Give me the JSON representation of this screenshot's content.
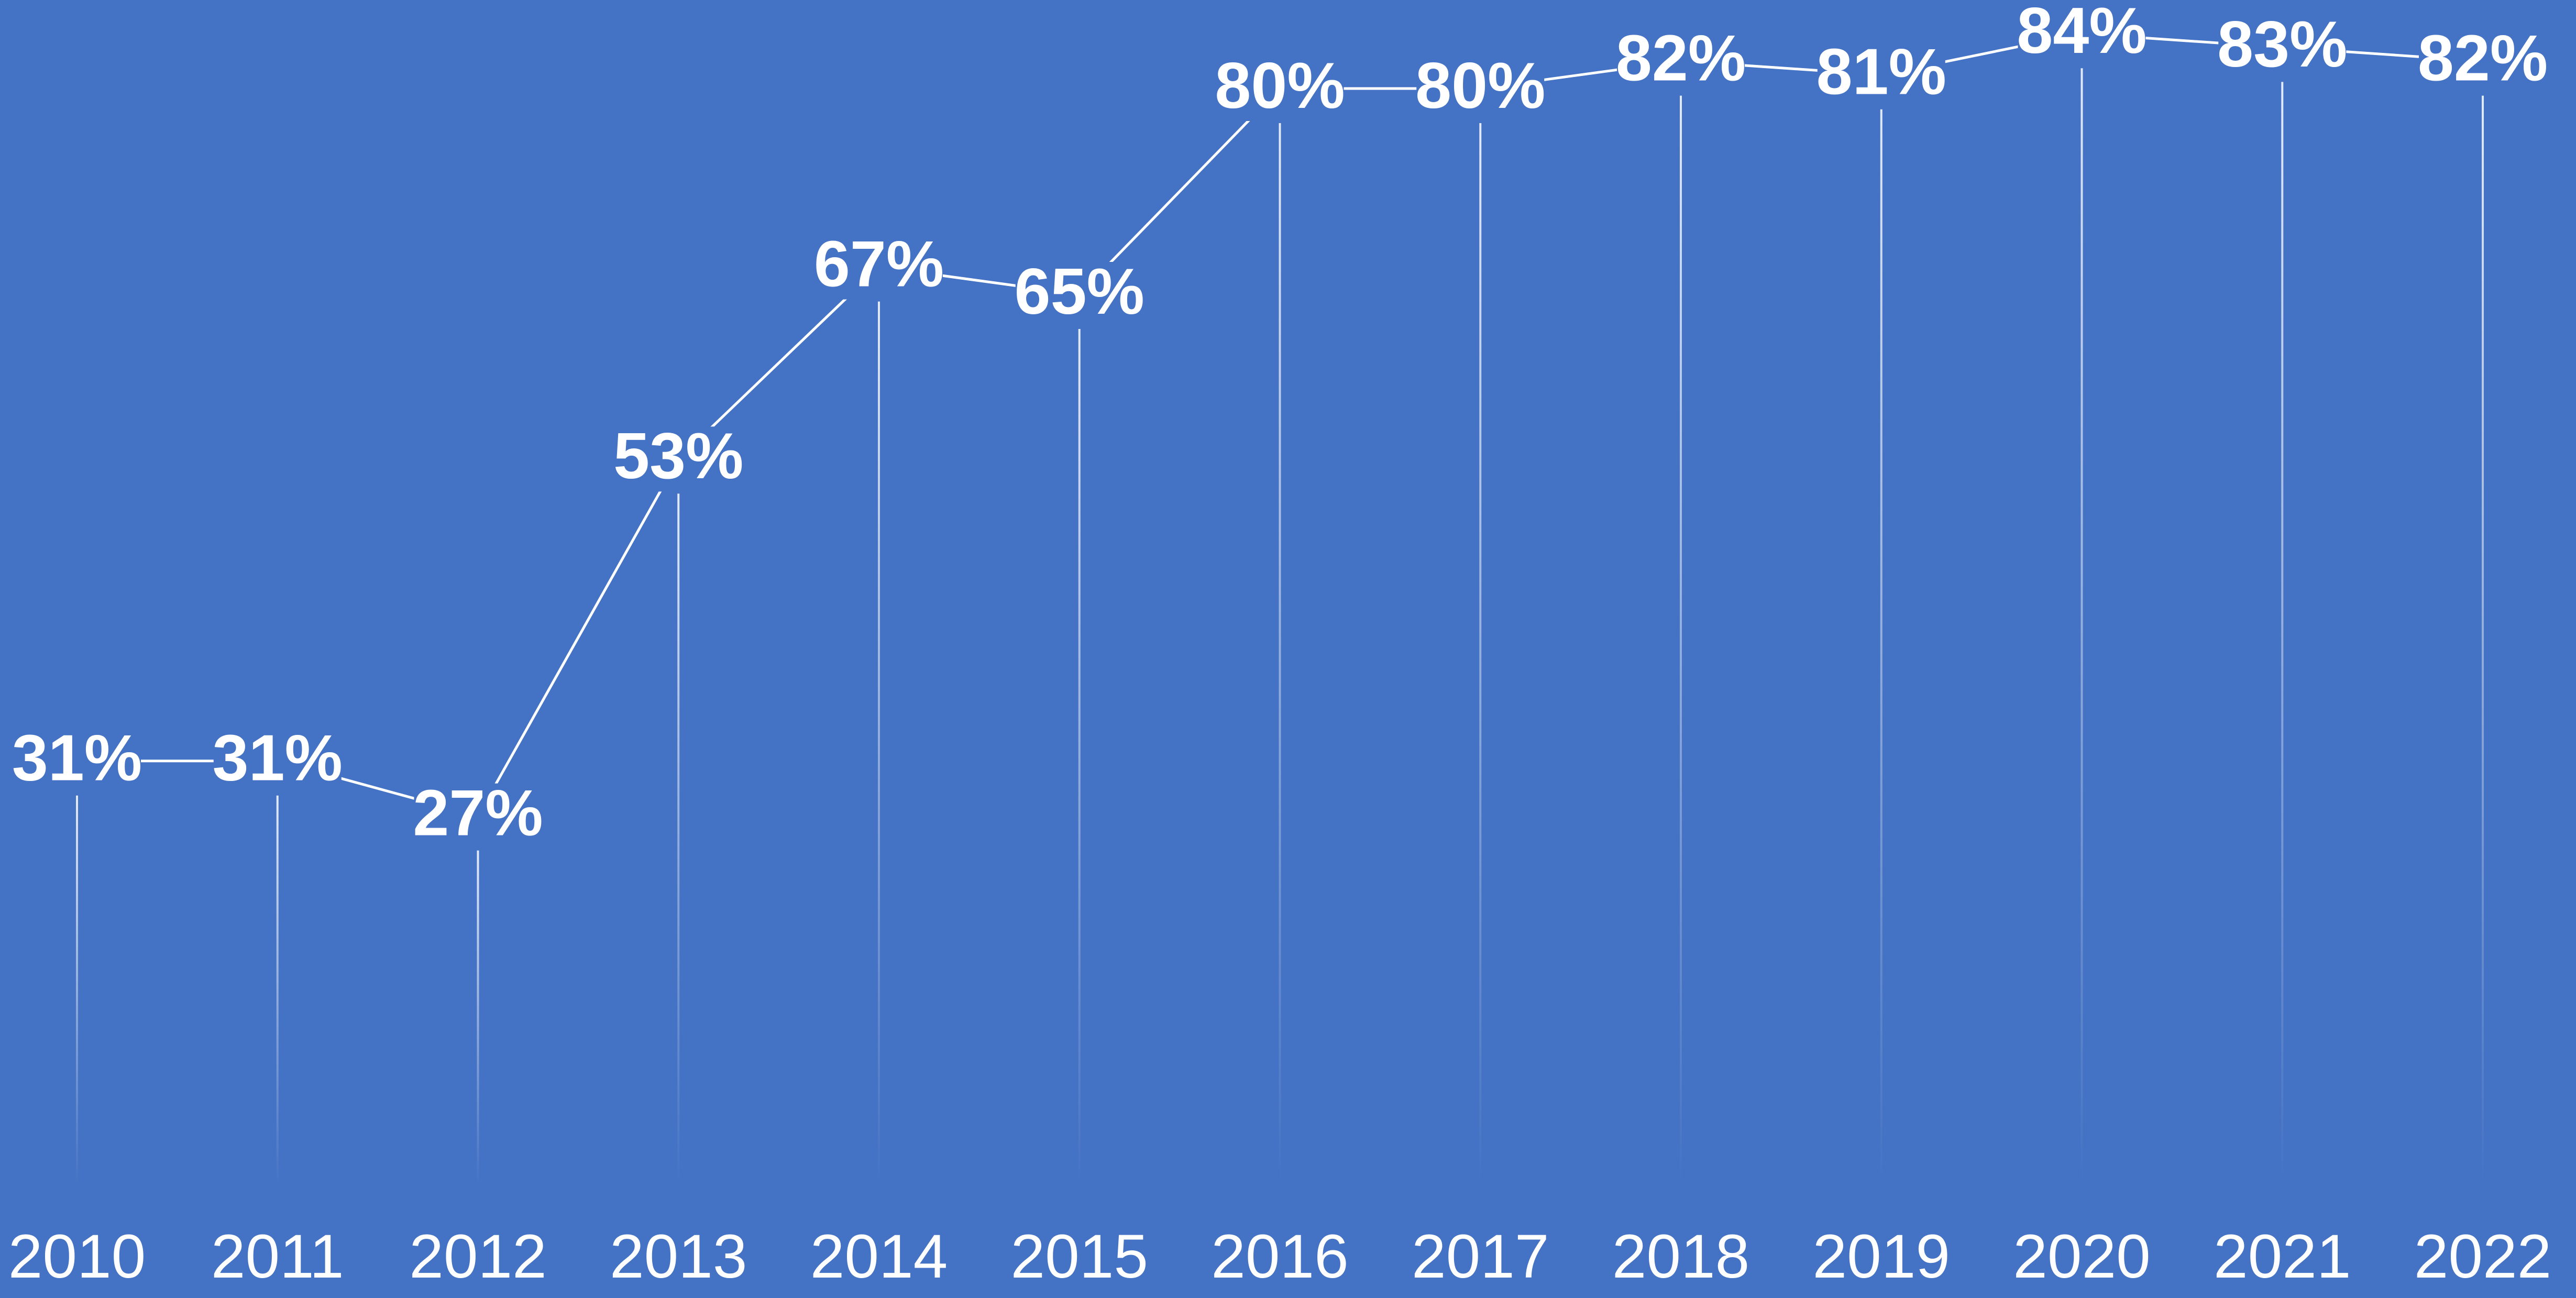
{
  "chart_data": {
    "type": "line",
    "categories": [
      "2010",
      "2011",
      "2012",
      "2013",
      "2014",
      "2015",
      "2016",
      "2017",
      "2018",
      "2019",
      "2020",
      "2021",
      "2022"
    ],
    "values": [
      31,
      31,
      27,
      53,
      67,
      65,
      80,
      80,
      82,
      81,
      84,
      83,
      82
    ],
    "value_labels": [
      "31%",
      "31%",
      "27%",
      "53%",
      "67%",
      "65%",
      "80%",
      "80%",
      "82%",
      "81%",
      "84%",
      "83%",
      "82%"
    ],
    "color": "#ffffff",
    "background": "#4472c4"
  }
}
